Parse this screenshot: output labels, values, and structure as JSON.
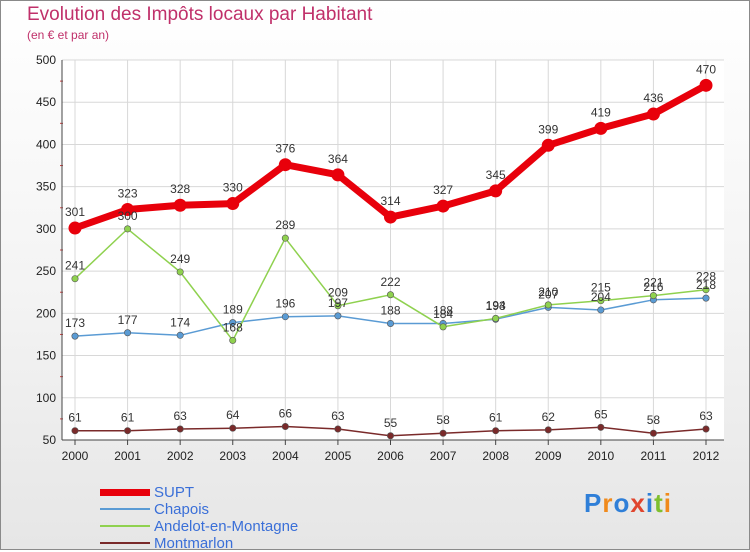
{
  "header": {
    "title": "Evolution des Impôts locaux par Habitant",
    "subtitle": "(en € et par an)"
  },
  "logo": {
    "text": "Proxiti",
    "colors": [
      "#2f7fd8",
      "#f08a1c",
      "#2f7fd8",
      "#e0452e",
      "#2f7fd8",
      "#7fbf2f",
      "#f08a1c"
    ]
  },
  "chart_data": {
    "type": "line",
    "title": "Evolution des Impôts locaux par Habitant",
    "subtitle": "(en € et par an)",
    "x": [
      "2000",
      "2001",
      "2002",
      "2003",
      "2004",
      "2005",
      "2006",
      "2007",
      "2008",
      "2009",
      "2010",
      "2011",
      "2012"
    ],
    "ylim": [
      50,
      500
    ],
    "yticks": [
      50,
      100,
      150,
      200,
      250,
      300,
      350,
      400,
      450,
      500
    ],
    "grid": true,
    "legend_position": "bottom-left",
    "series": [
      {
        "name": "SUPT",
        "color": "#e8000b",
        "values": [
          301,
          323,
          328,
          330,
          376,
          364,
          314,
          327,
          345,
          399,
          419,
          436,
          470
        ],
        "labels": [
          "301",
          "323",
          "328",
          "330",
          "376",
          "364",
          "314",
          "327",
          "345",
          "399",
          "419",
          "436",
          "470"
        ]
      },
      {
        "name": "Chapois",
        "color": "#5a9bd4",
        "values": [
          173,
          177,
          174,
          189,
          196,
          197,
          188,
          188,
          193,
          207,
          204,
          216,
          218
        ],
        "labels": [
          "173",
          "177",
          "174",
          "189",
          "196",
          "197",
          "188",
          "188",
          "193",
          "207",
          "204",
          "216",
          "218"
        ]
      },
      {
        "name": "Andelot-en-Montagne",
        "color": "#8fd14f",
        "values": [
          241,
          300,
          249,
          168,
          289,
          209,
          222,
          184,
          194,
          210,
          215,
          221,
          228
        ],
        "labels": [
          "241",
          "300",
          "249",
          "168",
          "289",
          "209",
          "222",
          "184",
          "194",
          "210",
          "215",
          "221",
          "228"
        ]
      },
      {
        "name": "Montmarlon",
        "color": "#7a2a2a",
        "values": [
          61,
          61,
          63,
          64,
          66,
          63,
          55,
          58,
          61,
          62,
          65,
          58,
          63
        ],
        "labels": [
          "61",
          "61",
          "63",
          "64",
          "66",
          "63",
          "55",
          "58",
          "61",
          "62",
          "65",
          "58",
          "63"
        ]
      }
    ]
  }
}
